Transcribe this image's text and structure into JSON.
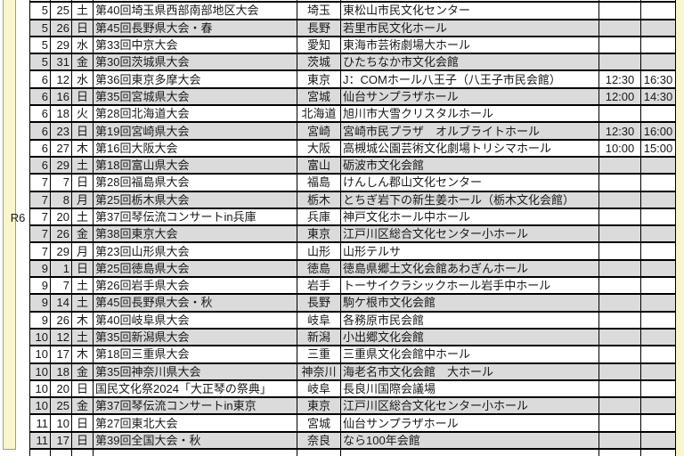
{
  "page": {
    "era_label": "R6",
    "colors": {
      "margin_stripe": "#faf6cb",
      "shaded_row": "#dbdbdb",
      "grid_border": "#000000",
      "stripe_border": "#9b9b8e",
      "text": "#191919"
    }
  },
  "schedule": {
    "rows": [
      {
        "month": "5",
        "day": "25",
        "weekday": "土",
        "title": "第40回埼玉県西部南部地区大会",
        "pref": "埼玉",
        "venue": "東松山市民文化センター",
        "time1": "",
        "time2": ""
      },
      {
        "month": "5",
        "day": "26",
        "weekday": "日",
        "title": "第45回長野県大会・春",
        "pref": "長野",
        "venue": "若里市民文化ホール",
        "time1": "",
        "time2": ""
      },
      {
        "month": "5",
        "day": "29",
        "weekday": "水",
        "title": "第33回中京大会",
        "pref": "愛知",
        "venue": "東海市芸術劇場大ホール",
        "time1": "",
        "time2": ""
      },
      {
        "month": "5",
        "day": "31",
        "weekday": "金",
        "title": "第30回茨城県大会",
        "pref": "茨城",
        "venue": "ひたちなか市文化会館",
        "time1": "",
        "time2": ""
      },
      {
        "month": "6",
        "day": "12",
        "weekday": "水",
        "title": "第36回東京多摩大会",
        "pref": "東京",
        "venue": "J：COMホール八王子（八王子市民会館）",
        "time1": "12:30",
        "time2": "16:30"
      },
      {
        "month": "6",
        "day": "16",
        "weekday": "日",
        "title": "第35回宮城県大会",
        "pref": "宮城",
        "venue": "仙台サンプラザホール",
        "time1": "12:00",
        "time2": "14:30"
      },
      {
        "month": "6",
        "day": "18",
        "weekday": "火",
        "title": "第28回北海道大会",
        "pref": "北海道",
        "venue": "旭川市大雪クリスタルホール",
        "time1": "",
        "time2": ""
      },
      {
        "month": "6",
        "day": "23",
        "weekday": "日",
        "title": "第19回宮崎県大会",
        "pref": "宮崎",
        "venue": "宮崎市民プラザ　オルブライトホール",
        "time1": "12:30",
        "time2": "16:00"
      },
      {
        "month": "6",
        "day": "27",
        "weekday": "木",
        "title": "第16回大阪大会",
        "pref": "大阪",
        "venue": "高槻城公園芸術文化劇場トリシマホール",
        "time1": "10:00",
        "time2": "15:00"
      },
      {
        "month": "6",
        "day": "29",
        "weekday": "土",
        "title": "第18回富山県大会",
        "pref": "富山",
        "venue": "砺波市文化会館",
        "time1": "",
        "time2": ""
      },
      {
        "month": "7",
        "day": "7",
        "weekday": "日",
        "title": "第28回福島県大会",
        "pref": "福島",
        "venue": "けんしん郡山文化センター",
        "time1": "",
        "time2": ""
      },
      {
        "month": "7",
        "day": "8",
        "weekday": "月",
        "title": "第25回栃木県大会",
        "pref": "栃木",
        "venue": "とちぎ岩下の新生姜ホール（栃木文化会館）",
        "time1": "",
        "time2": ""
      },
      {
        "month": "7",
        "day": "20",
        "weekday": "土",
        "title": "第37回琴伝流コンサートin兵庫",
        "pref": "兵庫",
        "venue": "神戸文化ホール中ホール",
        "time1": "",
        "time2": ""
      },
      {
        "month": "7",
        "day": "26",
        "weekday": "金",
        "title": "第38回東京大会",
        "pref": "東京",
        "venue": "江戸川区総合文化センター小ホール",
        "time1": "",
        "time2": ""
      },
      {
        "month": "7",
        "day": "29",
        "weekday": "月",
        "title": "第23回山形県大会",
        "pref": "山形",
        "venue": "山形テルサ",
        "time1": "",
        "time2": ""
      },
      {
        "month": "9",
        "day": "1",
        "weekday": "日",
        "title": "第25回徳島県大会",
        "pref": "徳島",
        "venue": "徳島県郷土文化会館あわぎんホール",
        "time1": "",
        "time2": ""
      },
      {
        "month": "9",
        "day": "7",
        "weekday": "土",
        "title": "第26回岩手県大会",
        "pref": "岩手",
        "venue": "トーサイクラシックホール岩手中ホール",
        "time1": "",
        "time2": ""
      },
      {
        "month": "9",
        "day": "14",
        "weekday": "土",
        "title": "第45回長野県大会・秋",
        "pref": "長野",
        "venue": "駒ケ根市文化会館",
        "time1": "",
        "time2": ""
      },
      {
        "month": "9",
        "day": "26",
        "weekday": "木",
        "title": "第40回岐阜県大会",
        "pref": "岐阜",
        "venue": "各務原市民会館",
        "time1": "",
        "time2": ""
      },
      {
        "month": "10",
        "day": "12",
        "weekday": "土",
        "title": "第35回新潟県大会",
        "pref": "新潟",
        "venue": "小出郷文化会館",
        "time1": "",
        "time2": ""
      },
      {
        "month": "10",
        "day": "17",
        "weekday": "木",
        "title": "第18回三重県大会",
        "pref": "三重",
        "venue": "三重県文化会館中ホール",
        "time1": "",
        "time2": ""
      },
      {
        "month": "10",
        "day": "18",
        "weekday": "金",
        "title": "第35回神奈川県大会",
        "pref": "神奈川",
        "venue": "海老名市文化会館　大ホール",
        "time1": "",
        "time2": ""
      },
      {
        "month": "10",
        "day": "20",
        "weekday": "日",
        "title": "国民文化祭2024「大正琴の祭典」",
        "pref": "岐阜",
        "venue": "長良川国際会議場",
        "time1": "",
        "time2": ""
      },
      {
        "month": "10",
        "day": "25",
        "weekday": "金",
        "title": "第37回琴伝流コンサートin東京",
        "pref": "東京",
        "venue": "江戸川区総合文化センター小ホール",
        "time1": "",
        "time2": ""
      },
      {
        "month": "11",
        "day": "10",
        "weekday": "日",
        "title": "第27回東北大会",
        "pref": "宮城",
        "venue": "仙台サンプラザホール",
        "time1": "",
        "time2": ""
      },
      {
        "month": "11",
        "day": "17",
        "weekday": "日",
        "title": "第39回全国大会・秋",
        "pref": "奈良",
        "venue": "なら100年会館",
        "time1": "",
        "time2": ""
      }
    ]
  }
}
